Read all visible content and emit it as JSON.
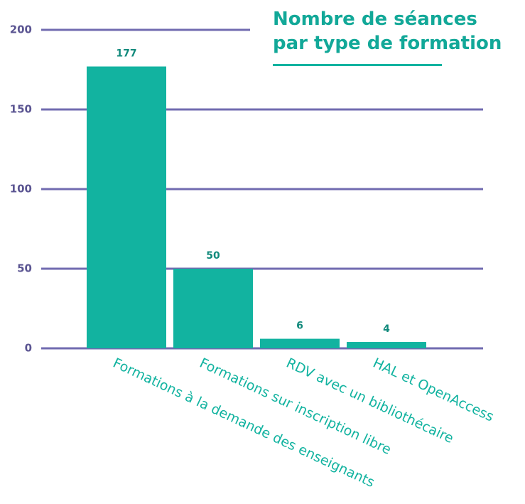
{
  "chart_data": {
    "type": "bar",
    "title": "Nombre de séances par type de formation",
    "categories": [
      "Formations à la demande des enseignants",
      "Formations sur inscription libre",
      "RDV avec un bibliothécaire",
      "HAL et OpenAccess"
    ],
    "values": [
      177,
      50,
      6,
      4
    ],
    "color": "#12b3a0",
    "ylim": [
      0,
      200
    ],
    "yticks": [
      0,
      50,
      100,
      150,
      200
    ],
    "grid": true
  }
}
